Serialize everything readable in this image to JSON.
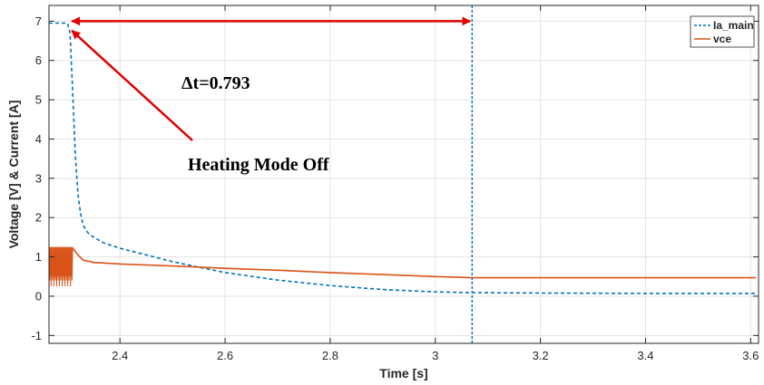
{
  "chart_data": {
    "type": "line",
    "xlabel": "Time [s]",
    "ylabel": "Voltage [V] & Current [A]",
    "xlim": [
      2.265,
      3.615
    ],
    "ylim": [
      -1.2,
      7.4
    ],
    "xticks": [
      "2.4",
      "2.6",
      "2.8",
      "3",
      "3.2",
      "3.4",
      "3.6"
    ],
    "yticks": [
      "-1",
      "0",
      "1",
      "2",
      "3",
      "4",
      "5",
      "6",
      "7"
    ],
    "grid": true,
    "legend_position": "top-right",
    "series": [
      {
        "name": "Ia_main",
        "color": "#0072BD",
        "style": "dashed",
        "x": [
          2.265,
          2.28,
          2.3,
          2.305,
          2.31,
          2.315,
          2.32,
          2.325,
          2.33,
          2.34,
          2.35,
          2.37,
          2.4,
          2.45,
          2.5,
          2.55,
          2.6,
          2.7,
          2.8,
          2.9,
          3.0,
          3.07,
          3.2,
          3.4,
          3.61
        ],
        "y": [
          6.95,
          6.95,
          6.95,
          6.7,
          5.2,
          3.6,
          2.6,
          2.1,
          1.8,
          1.6,
          1.5,
          1.35,
          1.22,
          1.05,
          0.88,
          0.74,
          0.6,
          0.41,
          0.27,
          0.17,
          0.11,
          0.09,
          0.08,
          0.07,
          0.07
        ]
      },
      {
        "name": "vce",
        "color": "#D95319",
        "style": "solid",
        "x": [
          2.31,
          2.32,
          2.33,
          2.35,
          2.4,
          2.5,
          2.6,
          2.7,
          2.8,
          2.9,
          3.0,
          3.07,
          3.2,
          3.4,
          3.61
        ],
        "y": [
          1.22,
          1.05,
          0.92,
          0.86,
          0.82,
          0.77,
          0.71,
          0.66,
          0.6,
          0.55,
          0.5,
          0.47,
          0.47,
          0.47,
          0.47
        ]
      }
    ],
    "vce_oscillation": {
      "x_range": [
        2.265,
        2.31
      ],
      "y_range": [
        0.2,
        1.25
      ]
    },
    "vertical_marker_x": 3.07,
    "annotations": {
      "delta_t": "Δt=0.793",
      "event": "Heating Mode Off"
    }
  }
}
